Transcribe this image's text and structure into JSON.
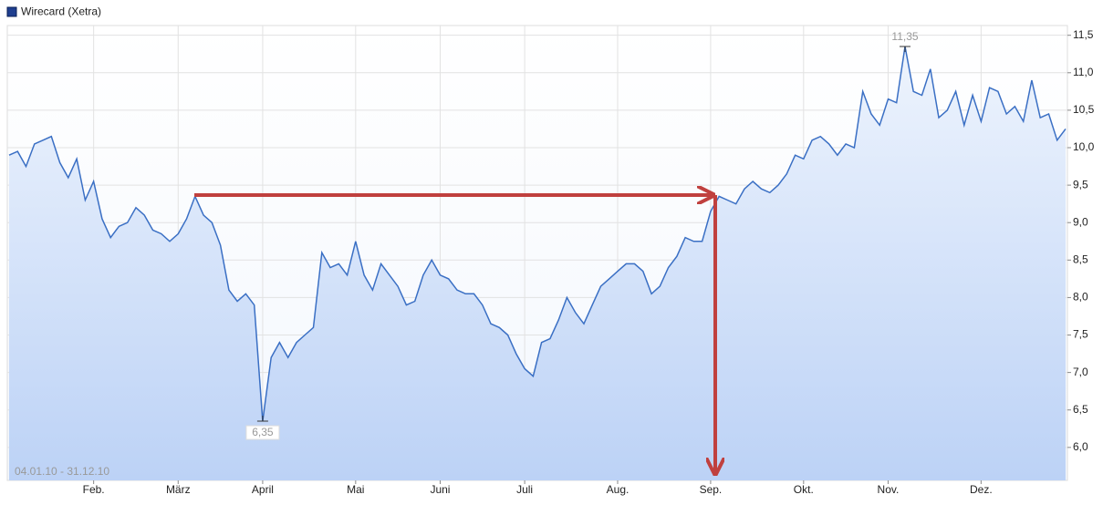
{
  "chart_data": {
    "type": "line",
    "legend": "Wirecard (Xetra)",
    "date_range": "04.01.10 - 31.12.10",
    "max_label": "11,35",
    "min_label": "6,35",
    "categories": [
      null,
      null,
      null,
      null,
      null,
      null,
      null,
      null,
      null,
      null,
      "Feb.",
      null,
      null,
      null,
      null,
      null,
      null,
      null,
      null,
      null,
      "März",
      null,
      null,
      null,
      null,
      null,
      null,
      null,
      null,
      null,
      "April",
      null,
      null,
      null,
      null,
      null,
      null,
      null,
      null,
      null,
      null,
      "Mai",
      null,
      null,
      null,
      null,
      null,
      null,
      null,
      null,
      null,
      "Juni",
      null,
      null,
      null,
      null,
      null,
      null,
      null,
      null,
      null,
      "Juli",
      null,
      null,
      null,
      null,
      null,
      null,
      null,
      null,
      null,
      null,
      "Aug.",
      null,
      null,
      null,
      null,
      null,
      null,
      null,
      null,
      null,
      null,
      "Sep.",
      null,
      null,
      null,
      null,
      null,
      null,
      null,
      null,
      null,
      null,
      "Okt.",
      null,
      null,
      null,
      null,
      null,
      null,
      null,
      null,
      null,
      "Nov.",
      null,
      null,
      null,
      null,
      null,
      null,
      null,
      null,
      null,
      null,
      "Dez.",
      null,
      null,
      null,
      null,
      null,
      null,
      null,
      null,
      null,
      null
    ],
    "series": [
      {
        "name": "Wirecard (Xetra)",
        "color": "#3a6fc4",
        "values": [
          9.9,
          9.95,
          9.75,
          10.05,
          10.1,
          10.15,
          9.8,
          9.6,
          9.85,
          9.3,
          9.55,
          9.05,
          8.8,
          8.95,
          9.0,
          9.2,
          9.1,
          8.9,
          8.85,
          8.75,
          8.85,
          9.05,
          9.35,
          9.1,
          9.0,
          8.7,
          8.1,
          7.95,
          8.05,
          7.9,
          6.35,
          7.2,
          7.4,
          7.2,
          7.4,
          7.5,
          7.6,
          8.6,
          8.4,
          8.45,
          8.3,
          8.75,
          8.3,
          8.1,
          8.45,
          8.3,
          8.15,
          7.9,
          7.95,
          8.3,
          8.5,
          8.3,
          8.25,
          8.1,
          8.05,
          8.05,
          7.9,
          7.65,
          7.6,
          7.5,
          7.25,
          7.05,
          6.95,
          7.4,
          7.45,
          7.7,
          8.0,
          7.8,
          7.65,
          7.9,
          8.15,
          8.25,
          8.35,
          8.45,
          8.45,
          8.35,
          8.05,
          8.15,
          8.4,
          8.55,
          8.8,
          8.75,
          8.75,
          9.15,
          9.35,
          9.3,
          9.25,
          9.45,
          9.55,
          9.45,
          9.4,
          9.5,
          9.65,
          9.9,
          9.85,
          10.1,
          10.15,
          10.05,
          9.9,
          10.05,
          10.0,
          10.75,
          10.45,
          10.3,
          10.65,
          10.6,
          11.35,
          10.75,
          10.7,
          11.05,
          10.4,
          10.5,
          10.75,
          10.3,
          10.7,
          10.35,
          10.8,
          10.75,
          10.45,
          10.55,
          10.35,
          10.9,
          10.4,
          10.45,
          10.1,
          10.25
        ]
      }
    ],
    "ylim": [
      5.56,
      11.63
    ],
    "yticks": [
      {
        "value": 6.0,
        "label": "6,0"
      },
      {
        "value": 6.5,
        "label": "6,5"
      },
      {
        "value": 7.0,
        "label": "7,0"
      },
      {
        "value": 7.5,
        "label": "7,5"
      },
      {
        "value": 8.0,
        "label": "8,0"
      },
      {
        "value": 8.5,
        "label": "8,5"
      },
      {
        "value": 9.0,
        "label": "9,0"
      },
      {
        "value": 9.5,
        "label": "9,5"
      },
      {
        "value": 10.0,
        "label": "10,0"
      },
      {
        "value": 10.5,
        "label": "10,5"
      },
      {
        "value": 11.0,
        "label": "11,0"
      },
      {
        "value": 11.5,
        "label": "11,5"
      }
    ],
    "grid": true
  }
}
